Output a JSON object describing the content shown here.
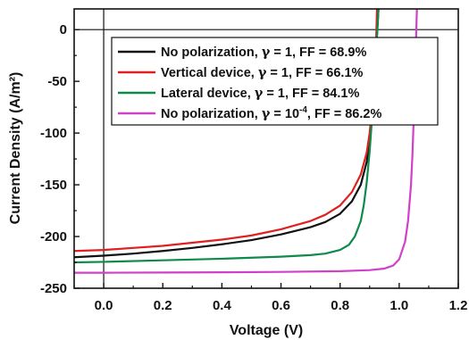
{
  "chart_data": {
    "type": "line",
    "xlabel": "Voltage (V)",
    "ylabel": "Current Density (A/m²)",
    "xlim": [
      -0.1,
      1.2
    ],
    "ylim": [
      -250,
      20
    ],
    "xticks": [
      0.0,
      0.2,
      0.4,
      0.6,
      0.8,
      1.0,
      1.2
    ],
    "xtick_labels": [
      "0.0",
      "0.2",
      "0.4",
      "0.6",
      "0.8",
      "1.0",
      "1.2"
    ],
    "yticks": [
      0,
      -50,
      -100,
      -150,
      -200,
      -250
    ],
    "ytick_labels": [
      "0",
      "-50",
      "-100",
      "-150",
      "-200",
      "-250"
    ],
    "reference_lines": {
      "x": 0,
      "y": 0
    },
    "legend_position": "top-right",
    "series": [
      {
        "name_parts": [
          "No polarization, ",
          "γ",
          " = 1, FF = 68.9%"
        ],
        "color": "#111111",
        "x": [
          -0.1,
          0.0,
          0.1,
          0.2,
          0.3,
          0.4,
          0.5,
          0.6,
          0.7,
          0.75,
          0.8,
          0.84,
          0.87,
          0.89,
          0.9,
          0.91,
          0.92,
          0.925,
          0.93
        ],
        "y": [
          -220,
          -218.5,
          -216.5,
          -214,
          -211,
          -207.5,
          -203.5,
          -198,
          -191,
          -186,
          -178,
          -166,
          -150,
          -128,
          -108,
          -75,
          -35,
          -5,
          20
        ]
      },
      {
        "name_parts": [
          "Vertical device, ",
          "γ",
          " = 1, FF = 66.1%"
        ],
        "color": "#e02020",
        "x": [
          -0.1,
          0.0,
          0.1,
          0.2,
          0.3,
          0.4,
          0.5,
          0.6,
          0.7,
          0.75,
          0.8,
          0.84,
          0.87,
          0.89,
          0.9,
          0.91,
          0.92,
          0.925
        ],
        "y": [
          -214,
          -213,
          -211,
          -209,
          -206,
          -203,
          -199,
          -193,
          -185,
          -179,
          -170,
          -157,
          -140,
          -119,
          -100,
          -70,
          -30,
          20
        ]
      },
      {
        "name_parts": [
          "Lateral device, ",
          "γ",
          " = 1, FF = 84.1%"
        ],
        "color": "#0e8a4a",
        "x": [
          -0.1,
          0.0,
          0.2,
          0.4,
          0.6,
          0.7,
          0.75,
          0.8,
          0.83,
          0.85,
          0.87,
          0.88,
          0.89,
          0.9,
          0.91,
          0.92,
          0.93
        ],
        "y": [
          -225,
          -224.5,
          -223,
          -221.5,
          -219.5,
          -218,
          -216.5,
          -213,
          -208,
          -200,
          -185,
          -170,
          -148,
          -118,
          -78,
          -30,
          20
        ]
      },
      {
        "name_parts": [
          "No polarization, ",
          "γ",
          " = 10",
          "-4",
          ", FF = 86.2%"
        ],
        "color": "#d040c8",
        "x": [
          -0.1,
          0.0,
          0.2,
          0.4,
          0.6,
          0.8,
          0.9,
          0.95,
          0.98,
          1.0,
          1.02,
          1.03,
          1.04,
          1.045,
          1.05,
          1.055,
          1.06
        ],
        "y": [
          -235,
          -235,
          -234.8,
          -234.6,
          -234.2,
          -233.5,
          -232.5,
          -231,
          -228,
          -222,
          -205,
          -185,
          -150,
          -120,
          -80,
          -30,
          20
        ]
      }
    ]
  }
}
